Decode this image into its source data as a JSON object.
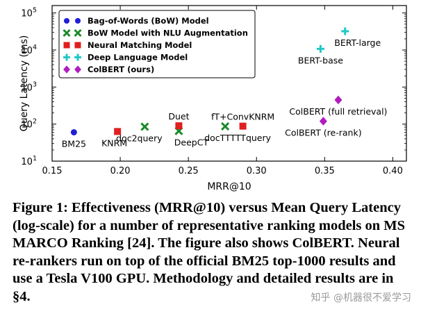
{
  "chart_data": {
    "type": "scatter",
    "xlabel": "MRR@10",
    "ylabel": "Query Latency (ms)",
    "xlim": [
      0.15,
      0.41
    ],
    "ylim_log10": [
      1,
      5.2
    ],
    "y_scale": "log",
    "x_ticks": [
      "0.15",
      "0.20",
      "0.25",
      "0.30",
      "0.35",
      "0.40"
    ],
    "y_ticks": [
      {
        "value": 10,
        "base": "10",
        "exp": "1"
      },
      {
        "value": 100,
        "base": "10",
        "exp": "2"
      },
      {
        "value": 1000,
        "base": "10",
        "exp": "3"
      },
      {
        "value": 10000,
        "base": "10",
        "exp": "4"
      },
      {
        "value": 100000,
        "base": "10",
        "exp": "5"
      }
    ],
    "legend_position": "top-left",
    "series": [
      {
        "name": "Bag-of-Words (BoW) Model",
        "marker": "circle",
        "color": "#1f1fd6",
        "points": [
          {
            "label": "BM25",
            "x": 0.166,
            "y": 60,
            "label_pos": "below"
          }
        ]
      },
      {
        "name": "BoW Model with NLU Augmentation",
        "marker": "x",
        "color": "#1b8a2a",
        "points": [
          {
            "label": "doc2query",
            "x": 0.218,
            "y": 85,
            "label_pos": "below-center"
          },
          {
            "label": "DeepCT",
            "x": 0.243,
            "y": 65,
            "label_pos": "below-right"
          },
          {
            "label": "docTTTTTquery",
            "x": 0.277,
            "y": 87,
            "label_pos": "below-right"
          }
        ]
      },
      {
        "name": "Neural Matching Model",
        "marker": "square",
        "color": "#e01f1f",
        "points": [
          {
            "label": "KNRM",
            "x": 0.198,
            "y": 63,
            "label_pos": "below-left"
          },
          {
            "label": "Duet",
            "x": 0.243,
            "y": 90,
            "label_pos": "above"
          },
          {
            "label": "fT+ConvKNRM",
            "x": 0.29,
            "y": 88,
            "label_pos": "above"
          }
        ]
      },
      {
        "name": "Deep Language Model",
        "marker": "plus",
        "color": "#22c7c7",
        "points": [
          {
            "label": "BERT-base",
            "x": 0.347,
            "y": 10700,
            "label_pos": "below"
          },
          {
            "label": "BERT-large",
            "x": 0.365,
            "y": 32000,
            "label_pos": "below-right"
          }
        ]
      },
      {
        "name": "ColBERT (ours)",
        "marker": "diamond",
        "color": "#b01cc0",
        "points": [
          {
            "label": "ColBERT (re-rank)",
            "x": 0.349,
            "y": 120,
            "label_pos": "below"
          },
          {
            "label": "ColBERT (full retrieval)",
            "x": 0.36,
            "y": 450,
            "label_pos": "below"
          }
        ]
      }
    ]
  },
  "caption": {
    "text": "Figure 1: Effectiveness (MRR@10) versus Mean Query Latency (log-scale) for a number of representative ranking models on MS MARCO Ranking [24]. The figure also shows ColBERT. Neural re-rankers run on top of the official BM25 top-1000 results and use a Tesla V100 GPU. Methodology and detailed results are in §4."
  },
  "watermark": {
    "text": "知乎 @机器很不爱学习"
  }
}
